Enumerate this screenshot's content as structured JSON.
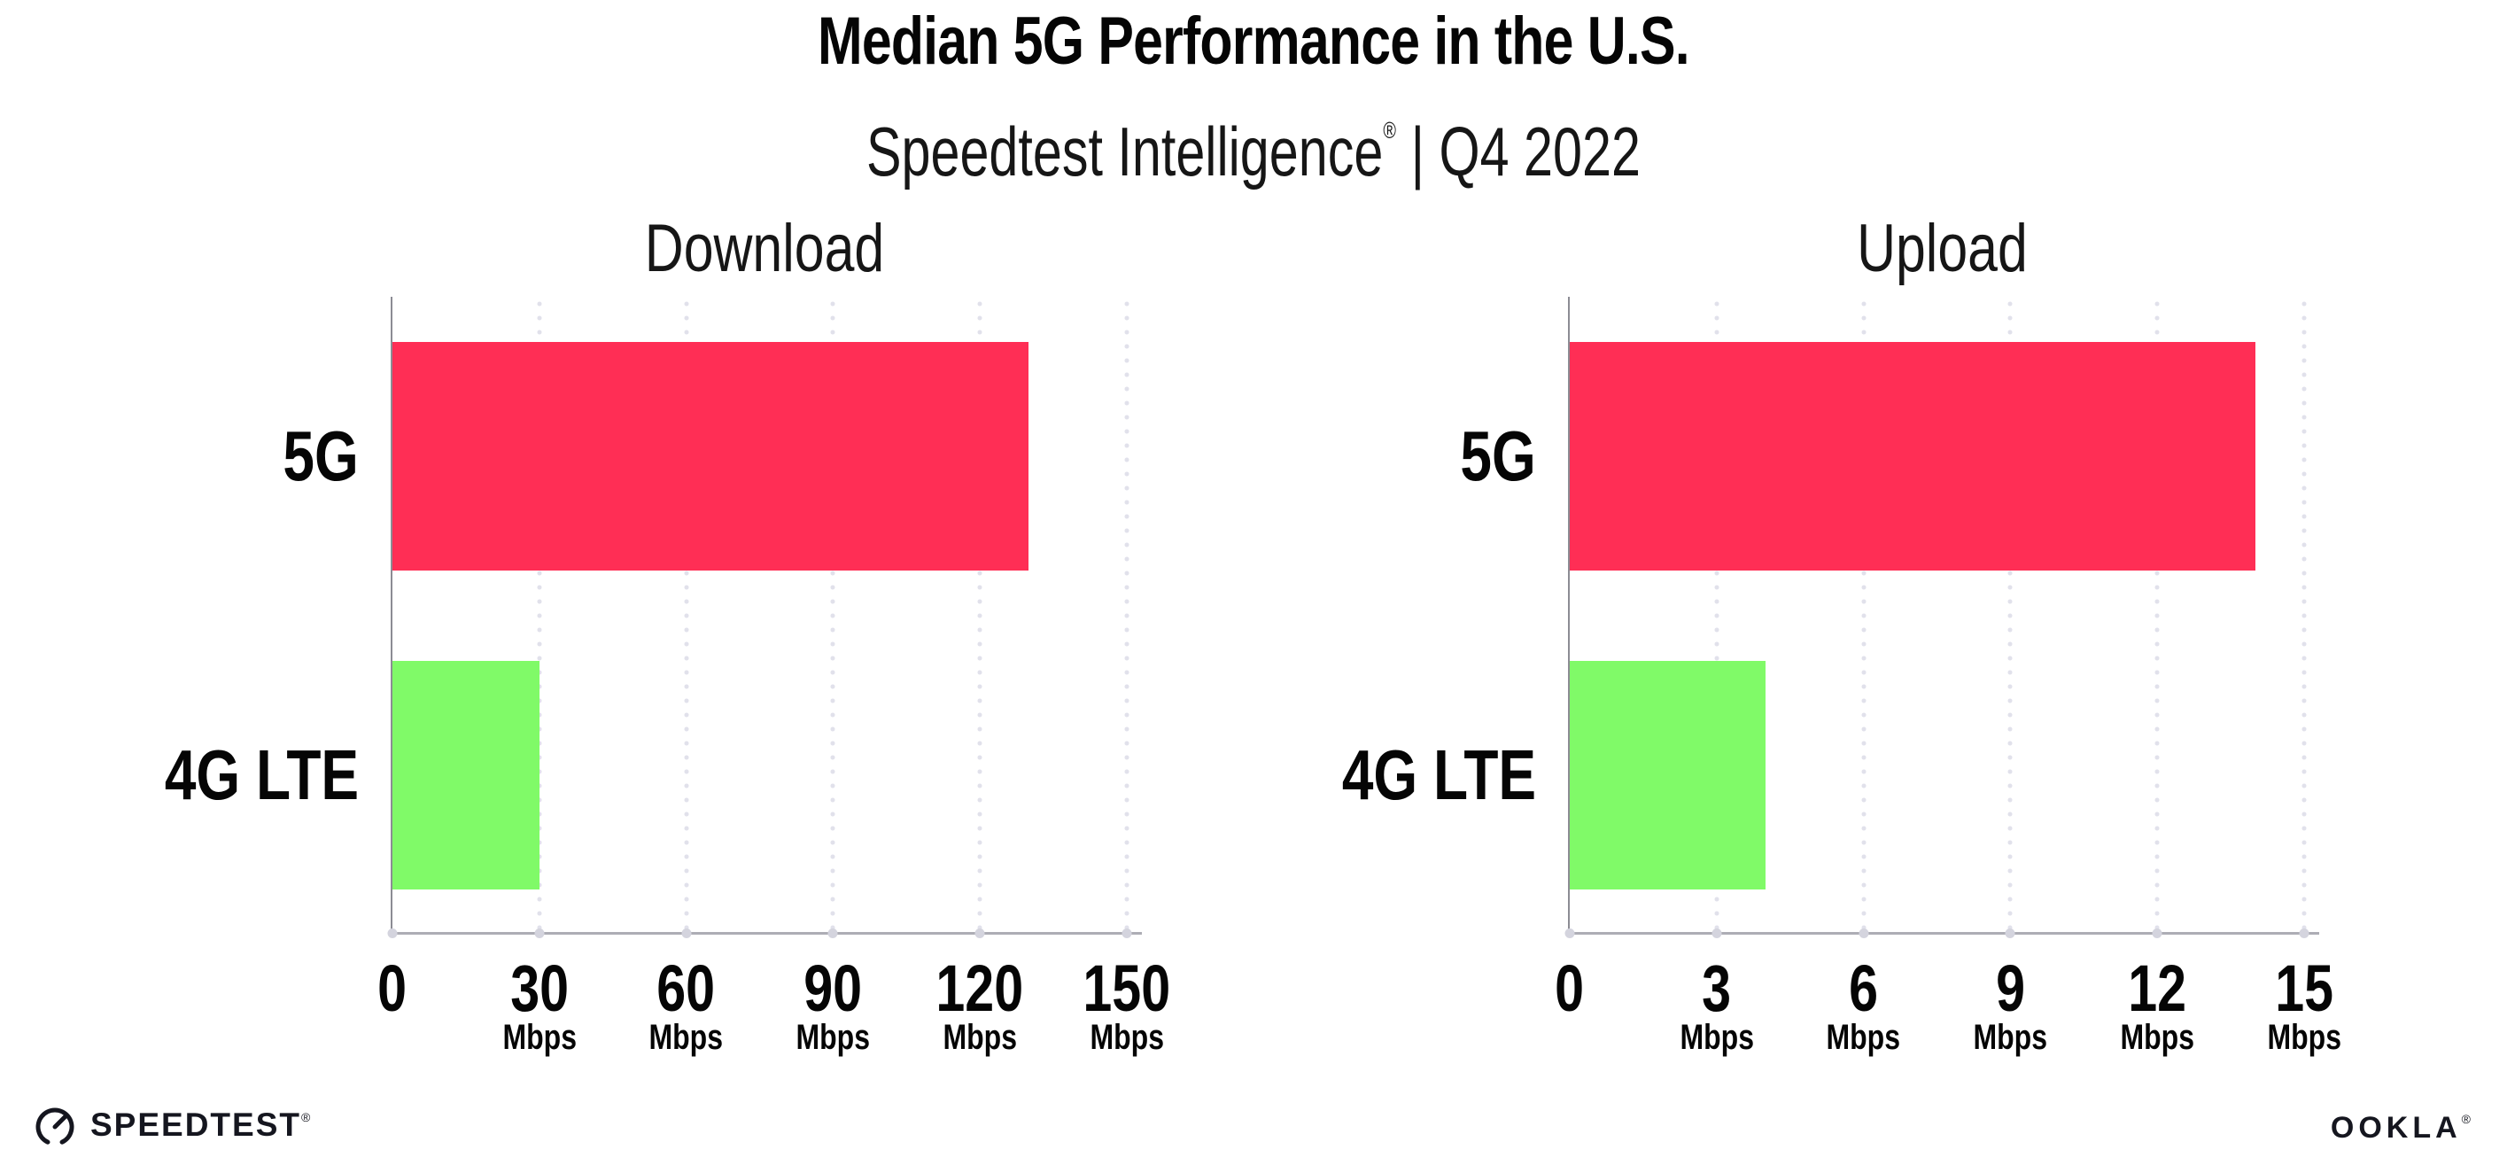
{
  "header": {
    "title": "Median 5G Performance in the U.S.",
    "subtitle_brand": "Speedtest Intelligence",
    "subtitle_reg": "®",
    "subtitle_rest": "| Q4 2022"
  },
  "footer": {
    "speedtest_label": "SPEEDTEST",
    "speedtest_reg": "®",
    "speedtest_icon": "gauge-icon",
    "ookla_label": "OOKLA",
    "ookla_reg": "®"
  },
  "colors": {
    "bar_5g": "#FF2E55",
    "bar_4g_lte": "#80FA68",
    "x_axis": "#ADADB5",
    "y_axis": "#8C8C94",
    "gridline_dots": "#E1E1EB",
    "axis_tick_dots": "#D4D4DE",
    "text": "#050505",
    "footer_text": "#15161F",
    "background": "#FFFFFF"
  },
  "chart_data": [
    {
      "type": "bar",
      "orientation": "horizontal",
      "title": "Download",
      "categories": [
        "5G",
        "4G LTE"
      ],
      "values": [
        130,
        30
      ],
      "unit": "Mbps",
      "xlim": [
        0,
        150
      ],
      "xticks": [
        0,
        30,
        60,
        90,
        120,
        150
      ],
      "tick_unit": "Mbps",
      "grid": "vertical-dotted",
      "legend": "none",
      "bar_colors": [
        "#FF2E55",
        "#80FA68"
      ]
    },
    {
      "type": "bar",
      "orientation": "horizontal",
      "title": "Upload",
      "categories": [
        "5G",
        "4G LTE"
      ],
      "values": [
        14,
        4
      ],
      "unit": "Mbps",
      "xlim": [
        0,
        15
      ],
      "xticks": [
        0,
        3,
        6,
        9,
        12,
        15
      ],
      "tick_unit": "Mbps",
      "grid": "vertical-dotted",
      "legend": "none",
      "bar_colors": [
        "#FF2E55",
        "#80FA68"
      ]
    }
  ]
}
